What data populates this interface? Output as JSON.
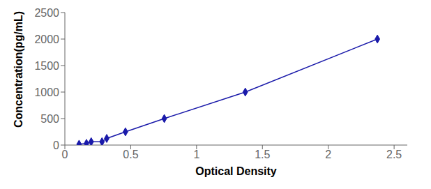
{
  "chart_data": {
    "type": "line",
    "x": [
      0.108,
      0.164,
      0.2,
      0.282,
      0.318,
      0.46,
      0.755,
      1.37,
      2.373
    ],
    "values": [
      15.6,
      31.2,
      62.5,
      62.5,
      125,
      250,
      500,
      1000,
      2000
    ],
    "color": "#1a1aaa",
    "marker": "diamond",
    "xlabel": "Optical Density",
    "ylabel": "Concentration(pg/mL)",
    "xlim": [
      0,
      2.6
    ],
    "ylim": [
      0,
      2500
    ],
    "xticks": [
      0,
      0.5,
      1.0,
      1.5,
      2.0,
      2.5
    ],
    "yticks": [
      0,
      500,
      1000,
      1500,
      2000,
      2500
    ],
    "grid": false
  }
}
